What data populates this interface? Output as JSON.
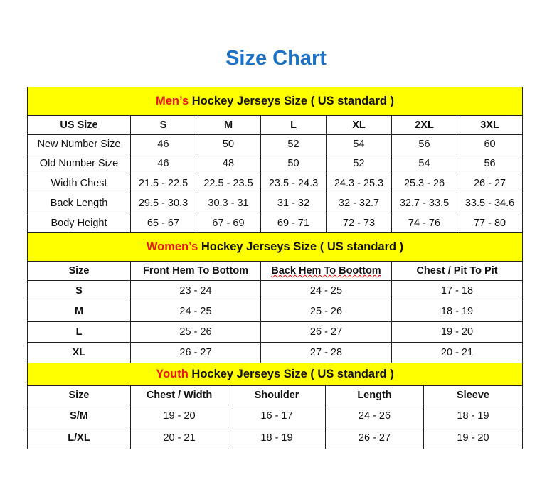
{
  "title": "Size Chart",
  "sections": {
    "men": {
      "label_highlight": "Men’s",
      "label_rest": " Hockey Jerseys Size ( US standard )",
      "columns": [
        "US Size",
        "S",
        "M",
        "L",
        "XL",
        "2XL",
        "3XL"
      ],
      "rows": [
        [
          "New Number Size",
          "46",
          "50",
          "52",
          "54",
          "56",
          "60"
        ],
        [
          "Old Number Size",
          "46",
          "48",
          "50",
          "52",
          "54",
          "56"
        ],
        [
          "Width Chest",
          "21.5 - 22.5",
          "22.5 - 23.5",
          "23.5 - 24.3",
          "24.3 - 25.3",
          "25.3 - 26",
          "26 - 27"
        ],
        [
          "Back Length",
          "29.5 - 30.3",
          "30.3 - 31",
          "31 - 32",
          "32 - 32.7",
          "32.7 - 33.5",
          "33.5 - 34.6"
        ],
        [
          "Body Height",
          "65 - 67",
          "67 - 69",
          "69 - 71",
          "72 - 73",
          "74 - 76",
          "77 - 80"
        ]
      ]
    },
    "women": {
      "label_highlight": "Women’s",
      "label_rest": " Hockey Jerseys Size ( US standard )",
      "columns": [
        "Size",
        "Front Hem To Bottom",
        "Back Hem To Boottom",
        "Chest / Pit To Pit"
      ],
      "rows": [
        [
          "S",
          "23 - 24",
          "24 - 25",
          "17 - 18"
        ],
        [
          "M",
          "24 - 25",
          "25 - 26",
          "18 - 19"
        ],
        [
          "L",
          "25 - 26",
          "26 - 27",
          "19 - 20"
        ],
        [
          "XL",
          "26 - 27",
          "27 - 28",
          "20 - 21"
        ]
      ]
    },
    "youth": {
      "label_highlight": "Youth",
      "label_rest": " Hockey Jerseys Size ( US standard )",
      "columns": [
        "Size",
        "Chest / Width",
        "Shoulder",
        "Length",
        "Sleeve"
      ],
      "rows": [
        [
          "S/M",
          "19 - 20",
          "16 - 17",
          "24 - 26",
          "18 - 19"
        ],
        [
          "L/XL",
          "20 - 21",
          "18 - 19",
          "26 - 27",
          "19 - 20"
        ]
      ]
    }
  },
  "colors": {
    "title": "#1a73c8",
    "header_bg": "#ffff00",
    "highlight": "#e8141a"
  }
}
